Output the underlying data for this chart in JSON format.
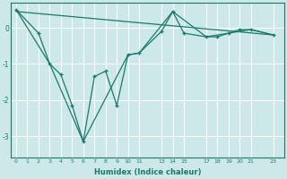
{
  "xlabel": "Humidex (Indice chaleur)",
  "background_color": "#cce8e8",
  "grid_color": "#ffffff",
  "line_color": "#1a7a6a",
  "xlim": [
    -0.5,
    24
  ],
  "ylim": [
    -3.6,
    0.7
  ],
  "xticks": [
    0,
    1,
    2,
    3,
    4,
    5,
    6,
    7,
    8,
    9,
    10,
    11,
    13,
    14,
    15,
    17,
    18,
    19,
    20,
    21,
    23
  ],
  "yticks": [
    0,
    -1,
    -2,
    -3
  ],
  "line1_x": [
    0,
    2,
    3,
    4,
    5,
    6,
    7,
    8,
    9,
    10,
    11,
    13,
    14,
    15,
    17,
    18,
    19,
    20,
    21,
    23
  ],
  "line1_y": [
    0.5,
    -0.15,
    -1.0,
    -1.3,
    -2.15,
    -3.15,
    -1.35,
    -1.2,
    -2.15,
    -0.75,
    -0.7,
    -0.1,
    0.45,
    -0.15,
    -0.25,
    -0.25,
    -0.15,
    -0.05,
    -0.05,
    -0.2
  ],
  "smooth_x": [
    0,
    3,
    6,
    10,
    11,
    14,
    17,
    21,
    23
  ],
  "smooth_y": [
    0.5,
    -1.0,
    -3.15,
    -0.75,
    -0.7,
    0.45,
    -0.25,
    -0.05,
    -0.2
  ],
  "trend_x": [
    0,
    23
  ],
  "trend_y": [
    0.45,
    -0.2
  ]
}
